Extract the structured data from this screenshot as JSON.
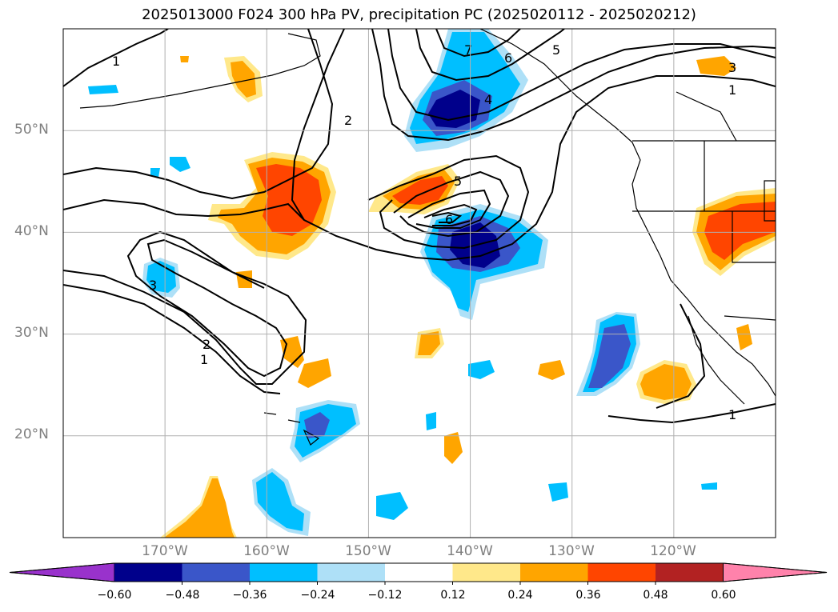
{
  "title": "2025013000 F024 300 hPa PV, precipitation PC (2025020112 - 2025020212)",
  "map": {
    "projection": "cylindrical",
    "lon_range": [
      -180,
      -110
    ],
    "lat_range": [
      10,
      60
    ],
    "grid": true,
    "lat_ticks": [
      {
        "text": "50°N",
        "value": 50
      },
      {
        "text": "40°N",
        "value": 40
      },
      {
        "text": "30°N",
        "value": 30
      },
      {
        "text": "20°N",
        "value": 20
      }
    ],
    "lon_ticks": [
      {
        "text": "170°W",
        "value": -170
      },
      {
        "text": "160°W",
        "value": -160
      },
      {
        "text": "150°W",
        "value": -150
      },
      {
        "text": "140°W",
        "value": -140
      },
      {
        "text": "130°W",
        "value": -130
      },
      {
        "text": "120°W",
        "value": -120
      }
    ],
    "contour_labels": [
      "1",
      "2",
      "3",
      "4",
      "5",
      "6",
      "7"
    ]
  },
  "colorbar": {
    "ticks": [
      "−0.60",
      "−0.48",
      "−0.36",
      "−0.24",
      "−0.12",
      "0.12",
      "0.24",
      "0.36",
      "0.48",
      "0.60"
    ],
    "colors": [
      "#9932cc",
      "#00008b",
      "#3a56c9",
      "#00bfff",
      "#aee0f7",
      "#ffffff",
      "#ffe88a",
      "#ffa500",
      "#ff4500",
      "#b22222",
      "#ff82ab"
    ]
  },
  "colors": {
    "neg_strong": "#00008b",
    "neg_mid": "#3a56c9",
    "neg_light": "#00bfff",
    "neg_faint": "#aee0f7",
    "pos_faint": "#ffe88a",
    "pos_light": "#ffa500",
    "pos_mid": "#ff4500"
  }
}
